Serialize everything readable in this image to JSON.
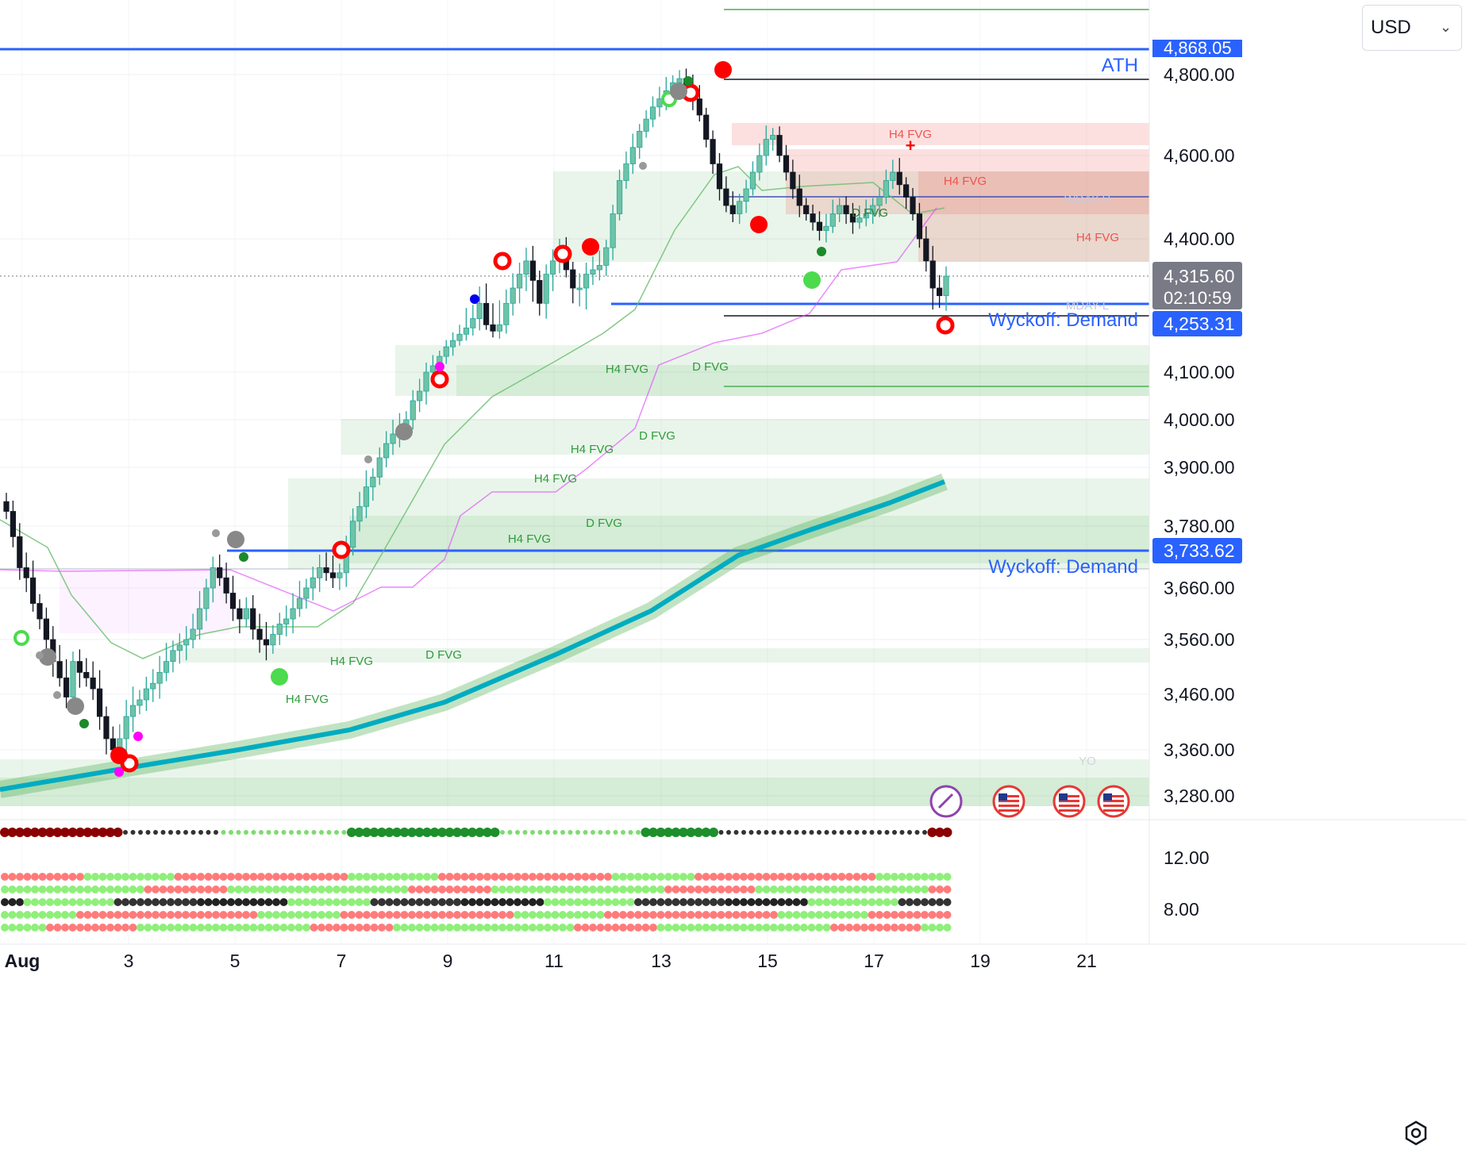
{
  "ui": {
    "currency": "USD",
    "current_price": "4,315.60",
    "countdown": "02:10:59",
    "price_label_mid": "4,253.31",
    "price_label_low": "3,733.62",
    "ath_price": "4,868.05",
    "ath_label": "ATH",
    "colors": {
      "up": "#26a69a",
      "down": "#131722",
      "blue_line": "#2962ff",
      "fvg_green": "#4caf50",
      "fvg_red": "#ef5350",
      "ema": "#00acc1"
    }
  },
  "chart_data": {
    "type": "candlestick",
    "price_axis": {
      "ticks": [
        4800,
        4600,
        4400,
        4100,
        4000,
        3900,
        3780,
        3660,
        3560,
        3460,
        3360,
        3280
      ],
      "tick_labels": [
        "4,800.00",
        "4,600.00",
        "4,400.00",
        "4,100.00",
        "4,000.00",
        "3,900.00",
        "3,780.00",
        "3,660.00",
        "3,560.00",
        "3,460.00",
        "3,360.00",
        "3,280.00"
      ]
    },
    "indicator_axis": {
      "ticks": [
        12,
        8
      ],
      "tick_labels": [
        "12.00",
        "8.00"
      ]
    },
    "time_axis": {
      "ticks": [
        "Aug",
        "3",
        "5",
        "7",
        "9",
        "11",
        "13",
        "15",
        "17",
        "19",
        "21"
      ]
    },
    "candles_close_approx": [
      3810,
      3760,
      3700,
      3680,
      3630,
      3600,
      3560,
      3520,
      3490,
      3455,
      3520,
      3500,
      3490,
      3470,
      3420,
      3380,
      3360,
      3380,
      3420,
      3440,
      3450,
      3470,
      3480,
      3500,
      3520,
      3540,
      3550,
      3560,
      3580,
      3620,
      3660,
      3700,
      3680,
      3650,
      3620,
      3600,
      3620,
      3580,
      3560,
      3550,
      3570,
      3590,
      3600,
      3620,
      3640,
      3660,
      3680,
      3700,
      3690,
      3680,
      3690,
      3740,
      3790,
      3820,
      3860,
      3880,
      3920,
      3950,
      3970,
      3980,
      4000,
      4040,
      4060,
      4100,
      4120,
      4150,
      4180,
      4200,
      4220,
      4240,
      4260,
      4280,
      4250,
      4230,
      4250,
      4280,
      4300,
      4320,
      4350,
      4310,
      4280,
      4320,
      4350,
      4370,
      4330,
      4300,
      4300,
      4320,
      4330,
      4340,
      4380,
      4460,
      4540,
      4580,
      4620,
      4660,
      4690,
      4720,
      4740,
      4760,
      4780,
      4790,
      4770,
      4740,
      4700,
      4640,
      4580,
      4520,
      4480,
      4460,
      4490,
      4520,
      4560,
      4600,
      4640,
      4650,
      4600,
      4560,
      4520,
      4480,
      4460,
      4440,
      4420,
      4430,
      4460,
      4480,
      4460,
      4440,
      4450,
      4460,
      4480,
      4500,
      4540,
      4560,
      4530,
      4500,
      4460,
      4400,
      4350,
      4300,
      4290,
      4315.6
    ],
    "annotations": [
      "ATH",
      "Wyckoff: Demand",
      "Wyckoff: Demand",
      "H4 FVG",
      "H4 FVG",
      "H4 FVG",
      "H4 FVG",
      "H4 FVG",
      "H4 FVG",
      "H4 FVG",
      "H4 FVG",
      "D FVG",
      "D FVG",
      "D FVG",
      "D FVG",
      "D FVG",
      "D FVG",
      "MDAY-L",
      "WDAY-H",
      "YO"
    ],
    "grid": true
  }
}
